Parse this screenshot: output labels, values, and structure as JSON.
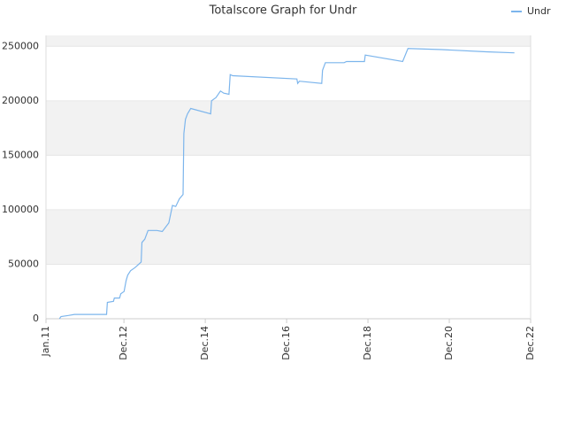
{
  "chart_data": {
    "type": "line",
    "title": "Totalscore Graph for Undr",
    "x": [
      2011.33,
      2011.37,
      2011.55,
      2011.7,
      2012.49,
      2012.51,
      2012.66,
      2012.68,
      2012.81,
      2012.84,
      2012.92,
      2012.97,
      2013.01,
      2013.08,
      2013.19,
      2013.34,
      2013.36,
      2013.43,
      2013.51,
      2013.73,
      2013.86,
      2014.02,
      2014.11,
      2014.19,
      2014.28,
      2014.37,
      2014.39,
      2014.43,
      2014.48,
      2014.56,
      2015.05,
      2015.07,
      2015.18,
      2015.29,
      2015.37,
      2015.5,
      2015.53,
      2015.59,
      2017.17,
      2017.19,
      2017.23,
      2017.78,
      2017.8,
      2017.87,
      2018.33,
      2018.39,
      2018.83,
      2018.85,
      2019.77,
      2019.9,
      2020.73,
      2021.82,
      2022.52
    ],
    "series": [
      {
        "name": "Undr",
        "color": "#7cb5ec",
        "values": [
          0,
          2000,
          3000,
          4000,
          4000,
          15000,
          16000,
          19000,
          19000,
          23000,
          25000,
          35000,
          40000,
          44000,
          47000,
          52000,
          70000,
          73000,
          81000,
          81000,
          80000,
          88000,
          104000,
          103000,
          110000,
          114000,
          170000,
          183000,
          188000,
          193000,
          188000,
          200000,
          203000,
          209000,
          207000,
          206000,
          224000,
          223000,
          220000,
          216000,
          218000,
          216000,
          228000,
          235000,
          235000,
          236000,
          236000,
          242000,
          236000,
          248000,
          247000,
          245000,
          244000
        ]
      }
    ],
    "xlim": [
      2011.0,
      2022.917
    ],
    "xticks": [
      {
        "value": 2011.0,
        "label": "Jan.11"
      },
      {
        "value": 2012.917,
        "label": "Dec.12"
      },
      {
        "value": 2014.917,
        "label": "Dec.14"
      },
      {
        "value": 2016.917,
        "label": "Dec.16"
      },
      {
        "value": 2018.917,
        "label": "Dec.18"
      },
      {
        "value": 2020.917,
        "label": "Dec.20"
      },
      {
        "value": 2022.917,
        "label": "Dec.22"
      }
    ],
    "ylim": [
      0,
      260000
    ],
    "yticks": [
      0,
      50000,
      100000,
      150000,
      200000,
      250000
    ],
    "grid": true,
    "legend": "top-right"
  }
}
